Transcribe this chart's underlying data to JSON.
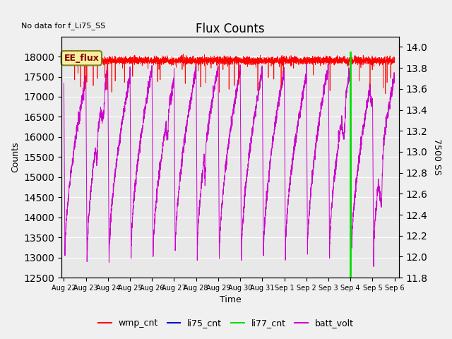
{
  "title": "Flux Counts",
  "xlabel": "Time",
  "ylabel_left": "Counts",
  "ylabel_right": "7500 SS",
  "no_data_text": "No data for f_Li75_SS",
  "ee_flux_label": "EE_flux",
  "ylim_left": [
    12500,
    18500
  ],
  "ylim_right": [
    11.8,
    14.1
  ],
  "yticks_left": [
    12500,
    13000,
    13500,
    14000,
    14500,
    15000,
    15500,
    16000,
    16500,
    17000,
    17500,
    18000
  ],
  "yticks_right": [
    11.8,
    12.0,
    12.2,
    12.4,
    12.6,
    12.8,
    13.0,
    13.2,
    13.4,
    13.6,
    13.8,
    14.0
  ],
  "x_tick_labels": [
    "Aug 22",
    "Aug 23",
    "Aug 24",
    "Aug 25",
    "Aug 26",
    "Aug 27",
    "Aug 28",
    "Aug 29",
    "Aug 30",
    "Aug 31",
    "Sep 1",
    "Sep 2",
    "Sep 3",
    "Sep 4",
    "Sep 5",
    "Sep 6"
  ],
  "wmp_color": "#ff0000",
  "li75_color": "#0000cc",
  "li77_color": "#00dd00",
  "batt_color": "#cc00cc",
  "fig_facecolor": "#f0f0f0",
  "plot_bg_color": "#e8e8e8",
  "legend_entries": [
    "wmp_cnt",
    "li75_cnt",
    "li77_cnt",
    "batt_volt"
  ]
}
